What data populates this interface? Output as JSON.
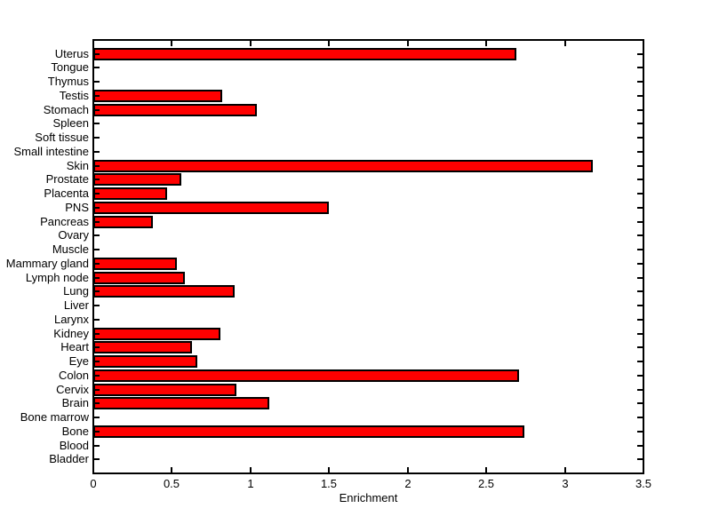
{
  "figure": {
    "background": "#ffffff"
  },
  "chart_data": {
    "type": "bar",
    "orientation": "horizontal",
    "title": "",
    "xlabel": "Enrichment",
    "ylabel": "",
    "categories": [
      "Uterus",
      "Tongue",
      "Thymus",
      "Testis",
      "Stomach",
      "Spleen",
      "Soft tissue",
      "Small intestine",
      "Skin",
      "Prostate",
      "Placenta",
      "PNS",
      "Pancreas",
      "Ovary",
      "Muscle",
      "Mammary gland",
      "Lymph node",
      "Lung",
      "Liver",
      "Larynx",
      "Kidney",
      "Heart",
      "Eye",
      "Colon",
      "Cervix",
      "Brain",
      "Bone marrow",
      "Bone",
      "Blood",
      "Bladder"
    ],
    "values": [
      2.69,
      0,
      0,
      0.82,
      1.04,
      0,
      0,
      0,
      3.18,
      0.56,
      0.47,
      1.5,
      0.38,
      0,
      0,
      0.53,
      0.58,
      0.9,
      0,
      0,
      0.81,
      0.63,
      0.66,
      2.71,
      0.91,
      1.12,
      0,
      2.74,
      0,
      0
    ],
    "xlim": [
      0,
      3.5
    ],
    "xticks": [
      0,
      0.5,
      1,
      1.5,
      2,
      2.5,
      3,
      3.5
    ],
    "xtick_labels": [
      "0",
      "0.5",
      "1",
      "1.5",
      "2",
      "2.5",
      "3",
      "3.5"
    ],
    "grid": false,
    "legend": null,
    "bar_color": "#ff0000",
    "bar_edge_color": "#000000",
    "axis_color": "#000000",
    "tick_direction": "in"
  }
}
